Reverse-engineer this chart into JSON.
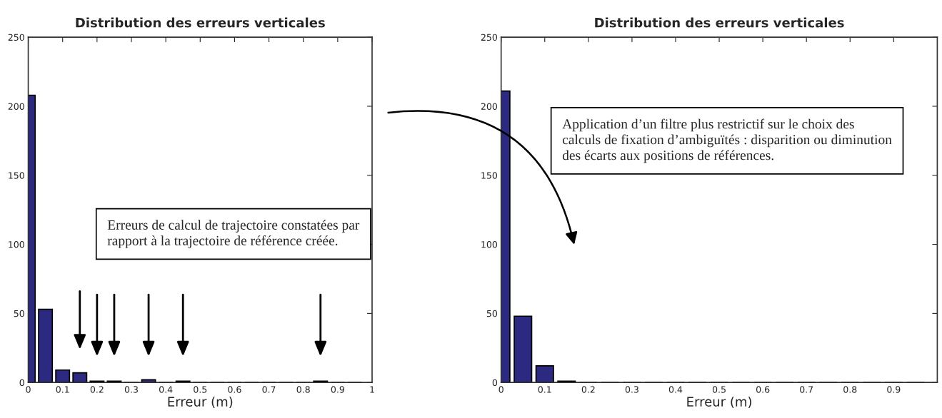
{
  "chart_data": [
    {
      "type": "histogram",
      "title": "Distribution des erreurs verticales",
      "xlabel": "Erreur (m)",
      "bins": [
        -0.025,
        0.025,
        0.075,
        0.125,
        0.175,
        0.225,
        0.275,
        0.325,
        0.375,
        0.425,
        0.475,
        0.525,
        0.575,
        0.625,
        0.675,
        0.725,
        0.775,
        0.825,
        0.875,
        0.925,
        0.975
      ],
      "values": [
        208,
        53,
        9,
        7,
        1,
        1,
        0,
        2,
        0,
        1,
        0,
        0,
        0,
        0,
        0,
        0,
        0,
        1,
        0,
        0
      ],
      "color": "#2b2a80",
      "xlim": [
        0,
        1
      ],
      "xticks": [
        0,
        0.1,
        0.2,
        0.3,
        0.4,
        0.5,
        0.6,
        0.7,
        0.8,
        0.9,
        1
      ],
      "ylim": [
        0,
        250
      ],
      "yticks": [
        0,
        50,
        100,
        150,
        200,
        250
      ],
      "grid": false,
      "annotations": [
        "Erreurs de calcul de trajectoire constatées par rapport à la trajectoire de référence créée."
      ]
    },
    {
      "type": "histogram",
      "title": "Distribution des erreurs verticales",
      "xlabel": "Erreur (m)",
      "bins": [
        -0.025,
        0.025,
        0.075,
        0.125,
        0.175,
        0.225,
        0.275,
        0.325,
        0.375,
        0.425,
        0.475,
        0.525,
        0.575,
        0.625,
        0.675,
        0.725,
        0.775,
        0.825,
        0.875,
        0.925,
        0.975
      ],
      "values": [
        211,
        48,
        12,
        1,
        0,
        0,
        0,
        0,
        0,
        0,
        0,
        0,
        0,
        0,
        0,
        0,
        0,
        0,
        0,
        0
      ],
      "color": "#2b2a80",
      "xlim": [
        0,
        1
      ],
      "xticks": [
        0,
        0.1,
        0.2,
        0.3,
        0.4,
        0.5,
        0.6,
        0.7,
        0.8,
        0.9
      ],
      "ylim": [
        0,
        250
      ],
      "yticks": [
        0,
        50,
        100,
        150,
        200,
        250
      ],
      "grid": false,
      "annotations": [
        "Application d’un filtre plus restrictif sur le choix des calculs de fixation d’ambiguïtés : disparition ou diminution des écarts aux positions de références."
      ]
    }
  ]
}
